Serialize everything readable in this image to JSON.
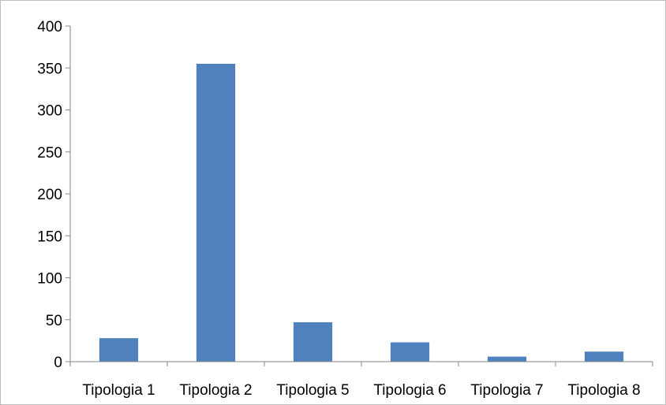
{
  "chart_data": {
    "type": "bar",
    "title": "",
    "xlabel": "",
    "ylabel": "",
    "categories": [
      "Tipologia 1",
      "Tipologia 2",
      "Tipologia 5",
      "Tipologia 6",
      "Tipologia 7",
      "Tipologia 8"
    ],
    "series": [
      {
        "values": [
          28,
          355,
          47,
          23,
          6,
          12
        ]
      }
    ],
    "ylim": [
      0,
      400
    ],
    "yticks": [
      0,
      50,
      100,
      150,
      200,
      250,
      300,
      350,
      400
    ],
    "grid": false,
    "legend": "none",
    "bar_color": "#4f81bd",
    "axis_color": "#868686"
  }
}
